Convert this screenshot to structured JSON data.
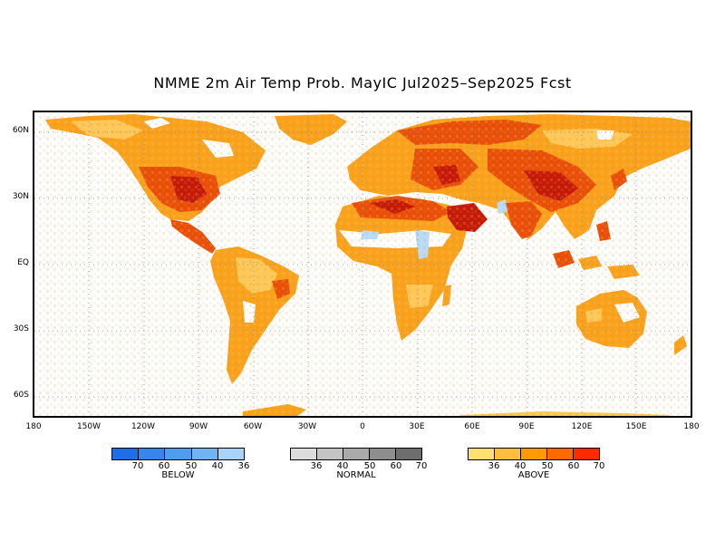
{
  "title": "NMME 2m Air Temp Prob. MayIC  Jul2025–Sep2025 Fcst",
  "lat_labels": [
    "60N",
    "30N",
    "EQ",
    "30S",
    "60S"
  ],
  "lon_labels": [
    "180",
    "150W",
    "120W",
    "90W",
    "60W",
    "30W",
    "0",
    "30E",
    "60E",
    "90E",
    "120E",
    "150E",
    "180"
  ],
  "legends": [
    {
      "name": "BELOW",
      "ticks": [
        "70",
        "60",
        "50",
        "40",
        "36"
      ],
      "colors": [
        "#1e6ee8",
        "#3585ec",
        "#4f9df0",
        "#70b4f4",
        "#a8d4fa"
      ]
    },
    {
      "name": "NORMAL",
      "ticks": [
        "36",
        "40",
        "50",
        "60",
        "70"
      ],
      "colors": [
        "#dcdcdc",
        "#c4c4c4",
        "#aaaaaa",
        "#8e8e8e",
        "#6e6e6e"
      ]
    },
    {
      "name": "ABOVE",
      "ticks": [
        "36",
        "40",
        "50",
        "60",
        "70"
      ],
      "colors": [
        "#ffe070",
        "#ffbf3c",
        "#ff9a00",
        "#ff6a00",
        "#ff2a00"
      ]
    }
  ],
  "colors": {
    "land_low": "#ffc85a",
    "land_mid": "#f9a21e",
    "land_high": "#e8500a",
    "land_max": "#c41a08",
    "normal": "#ffffff",
    "below": "#b8dcf8"
  }
}
